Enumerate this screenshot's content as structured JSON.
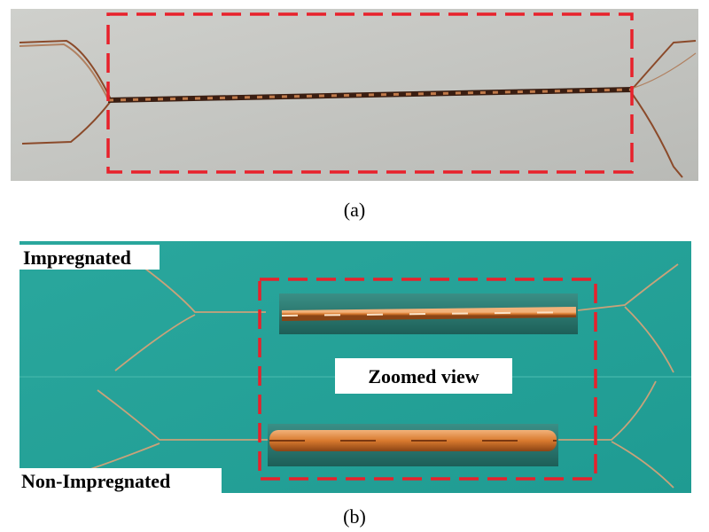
{
  "figure": {
    "panel_a": {
      "caption": "(a)"
    },
    "panel_b": {
      "caption": "(b)",
      "label_top": "Impregnated",
      "label_center": "Zoomed view",
      "label_bottom": "Non-Impregnated"
    }
  }
}
